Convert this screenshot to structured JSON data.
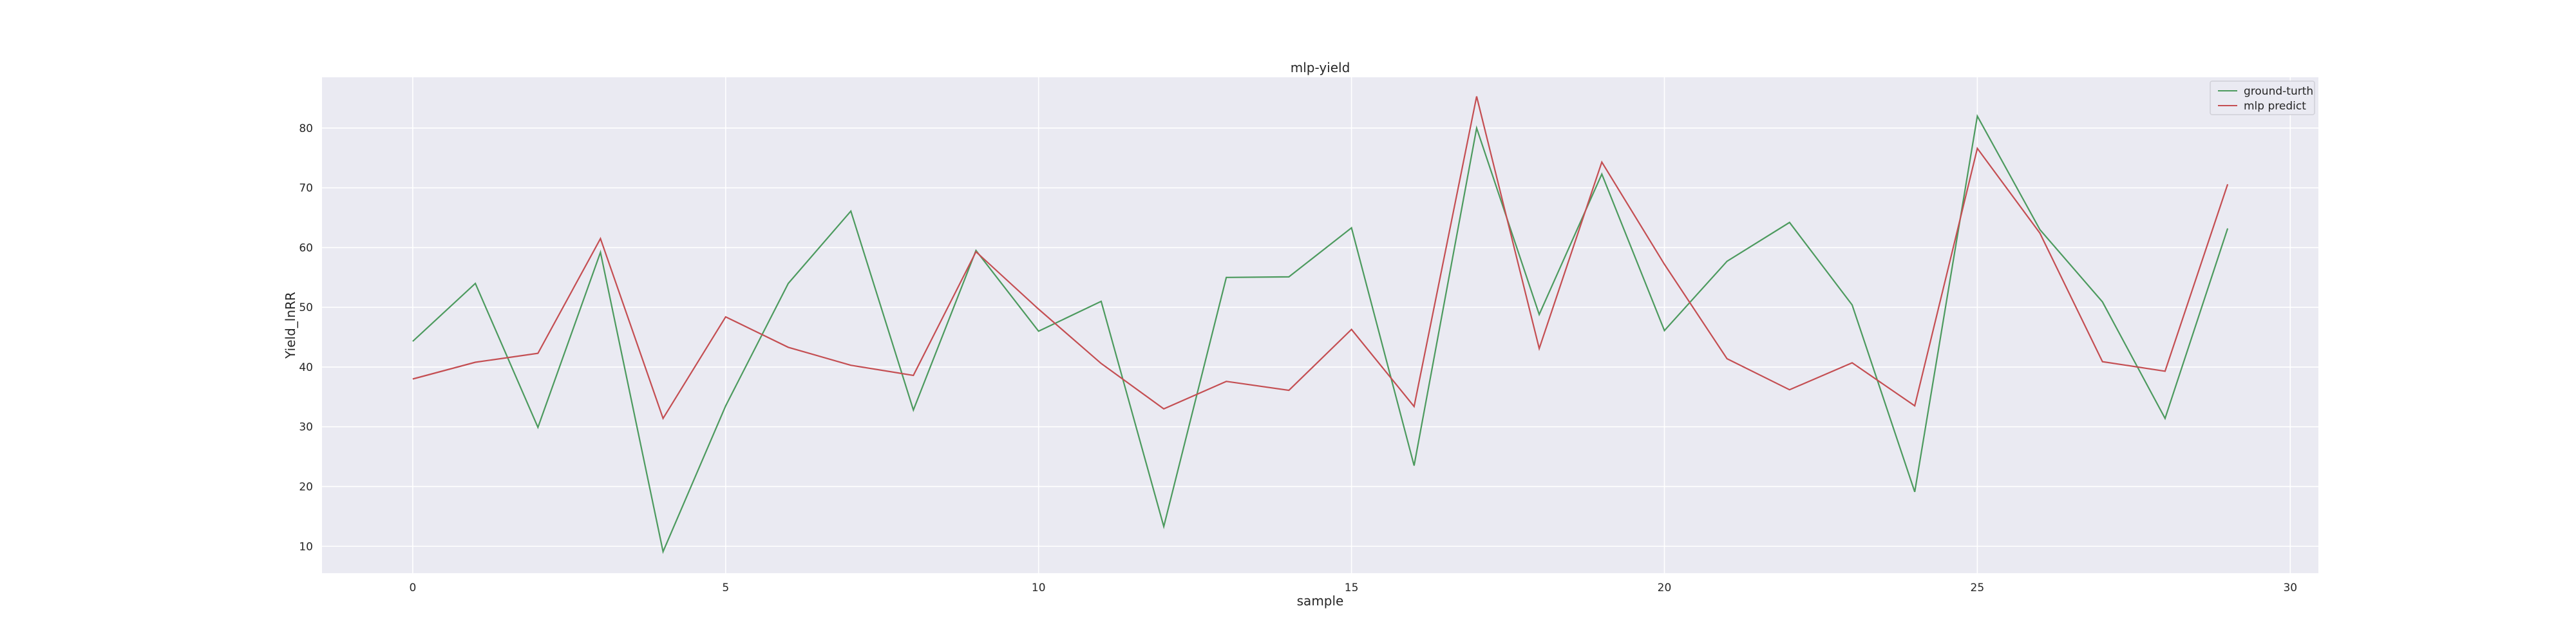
{
  "chart_data": {
    "type": "line",
    "title": "mlp-yield",
    "xlabel": "sample",
    "ylabel": "Yield_lnRR",
    "x": [
      0,
      1,
      2,
      3,
      4,
      5,
      6,
      7,
      8,
      9,
      10,
      11,
      12,
      13,
      14,
      15,
      16,
      17,
      18,
      19,
      20,
      21,
      22,
      23,
      24,
      25,
      26,
      27,
      28,
      29
    ],
    "xlim": [
      -1.45,
      30.45
    ],
    "ylim": [
      5.5,
      88.5
    ],
    "xticks": [
      0,
      5,
      10,
      15,
      20,
      25,
      30
    ],
    "yticks": [
      10,
      20,
      30,
      40,
      50,
      60,
      70,
      80
    ],
    "grid": true,
    "legend_position": "top-right",
    "series": [
      {
        "name": "ground-turth",
        "color": "#4c9a5e",
        "values": [
          44.3,
          54.0,
          29.9,
          59.2,
          9.1,
          33.5,
          54.0,
          66.1,
          32.8,
          59.5,
          46.0,
          51.0,
          13.3,
          55.0,
          55.1,
          63.3,
          23.5,
          80.0,
          48.8,
          72.3,
          46.1,
          57.7,
          64.2,
          50.4,
          19.1,
          82.0,
          63.0,
          50.9,
          31.4,
          63.2
        ]
      },
      {
        "name": "mlp predict",
        "color": "#c44e52",
        "values": [
          38.0,
          40.8,
          42.3,
          61.5,
          31.4,
          48.4,
          43.3,
          40.3,
          38.6,
          59.3,
          49.7,
          40.6,
          33.0,
          37.6,
          36.1,
          46.3,
          33.4,
          85.3,
          43.1,
          74.3,
          57.2,
          41.4,
          36.2,
          40.7,
          33.5,
          76.6,
          62.4,
          40.9,
          39.3,
          70.6
        ]
      }
    ]
  }
}
